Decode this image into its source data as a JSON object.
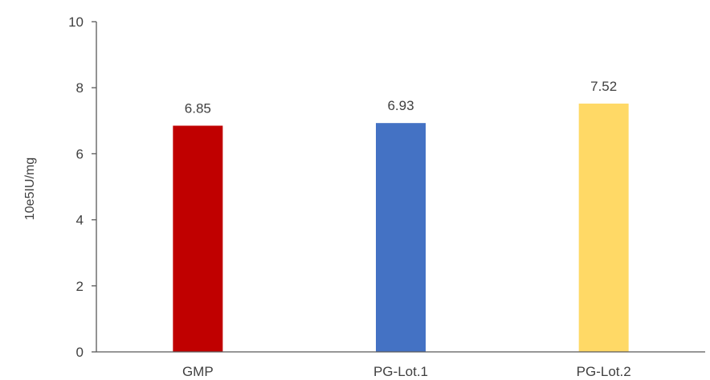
{
  "chart_data": {
    "type": "bar",
    "title": "",
    "xlabel": "",
    "ylabel": "10e5IU/mg",
    "categories": [
      "GMP",
      "PG-Lot.1",
      "PG-Lot.2"
    ],
    "values": [
      6.85,
      6.93,
      7.52
    ],
    "value_labels": [
      "6.85",
      "6.93",
      "7.52"
    ],
    "colors": [
      "#C00000",
      "#4472C4",
      "#FFD966"
    ],
    "ylim": [
      0,
      10
    ],
    "yticks": [
      0,
      2,
      4,
      6,
      8,
      10
    ],
    "grid": false,
    "legend": "none"
  }
}
